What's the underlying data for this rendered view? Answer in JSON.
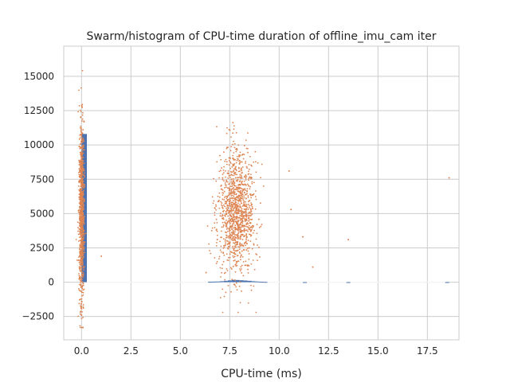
{
  "chart_data": {
    "type": "scatter",
    "title": "Swarm/histogram of CPU-time duration of offline_imu_cam iter",
    "xlabel": "CPU-time (ms)",
    "ylabel": "",
    "xlim": [
      -0.9,
      19.1
    ],
    "ylim": [
      -4200,
      17200
    ],
    "xticks": [
      0.0,
      2.5,
      5.0,
      7.5,
      10.0,
      12.5,
      15.0,
      17.5
    ],
    "xtick_labels": [
      "0.0",
      "2.5",
      "5.0",
      "7.5",
      "10.0",
      "12.5",
      "15.0",
      "17.5"
    ],
    "yticks": [
      -2500,
      0,
      2500,
      5000,
      7500,
      10000,
      12500,
      15000
    ],
    "ytick_labels": [
      "−2500",
      "0",
      "2500",
      "5000",
      "7500",
      "10000",
      "12500",
      "15000"
    ],
    "grid": true,
    "legend": "none",
    "colors": {
      "histogram": "#4c72b0",
      "swarm": "#dd8452",
      "grid": "#cccccc",
      "spine": "#cccccc"
    },
    "histogram": {
      "bins": [
        {
          "x0": 0.0,
          "x1": 0.27,
          "count": 10800
        },
        {
          "x0": 6.4,
          "x1": 6.6,
          "count": 30
        },
        {
          "x0": 6.6,
          "x1": 6.8,
          "count": 40
        },
        {
          "x0": 6.8,
          "x1": 7.0,
          "count": 50
        },
        {
          "x0": 7.0,
          "x1": 7.2,
          "count": 70
        },
        {
          "x0": 7.2,
          "x1": 7.4,
          "count": 100
        },
        {
          "x0": 7.4,
          "x1": 7.6,
          "count": 130
        },
        {
          "x0": 7.6,
          "x1": 7.8,
          "count": 170
        },
        {
          "x0": 7.8,
          "x1": 8.0,
          "count": 160
        },
        {
          "x0": 8.0,
          "x1": 8.2,
          "count": 140
        },
        {
          "x0": 8.2,
          "x1": 8.4,
          "count": 120
        },
        {
          "x0": 8.4,
          "x1": 8.6,
          "count": 100
        },
        {
          "x0": 8.6,
          "x1": 8.8,
          "count": 70
        },
        {
          "x0": 8.8,
          "x1": 9.0,
          "count": 50
        },
        {
          "x0": 9.0,
          "x1": 9.2,
          "count": 30
        },
        {
          "x0": 9.2,
          "x1": 9.4,
          "count": 20
        },
        {
          "x0": 11.2,
          "x1": 11.4,
          "count": 5
        },
        {
          "x0": 13.4,
          "x1": 13.6,
          "count": 5
        },
        {
          "x0": 18.4,
          "x1": 18.6,
          "count": 5
        }
      ]
    },
    "swarm_groups": [
      {
        "x_center": 0.0,
        "x_spread": 0.12,
        "y_mean": 5000,
        "y_sd": 3300,
        "n": 900,
        "y_min": -3300,
        "y_max": 16400
      },
      {
        "x_center": 7.85,
        "x_spread": 0.85,
        "y_mean": 5100,
        "y_sd": 2200,
        "n": 1200,
        "y_min": -2200,
        "y_max": 12300
      }
    ],
    "outliers": [
      {
        "x": 1.0,
        "y": 1900
      },
      {
        "x": 11.2,
        "y": 3300
      },
      {
        "x": 11.7,
        "y": 1100
      },
      {
        "x": 13.5,
        "y": 3100
      },
      {
        "x": 18.6,
        "y": 7600
      },
      {
        "x": 10.5,
        "y": 8100
      },
      {
        "x": 10.6,
        "y": 5300
      },
      {
        "x": 6.3,
        "y": 700
      }
    ]
  }
}
